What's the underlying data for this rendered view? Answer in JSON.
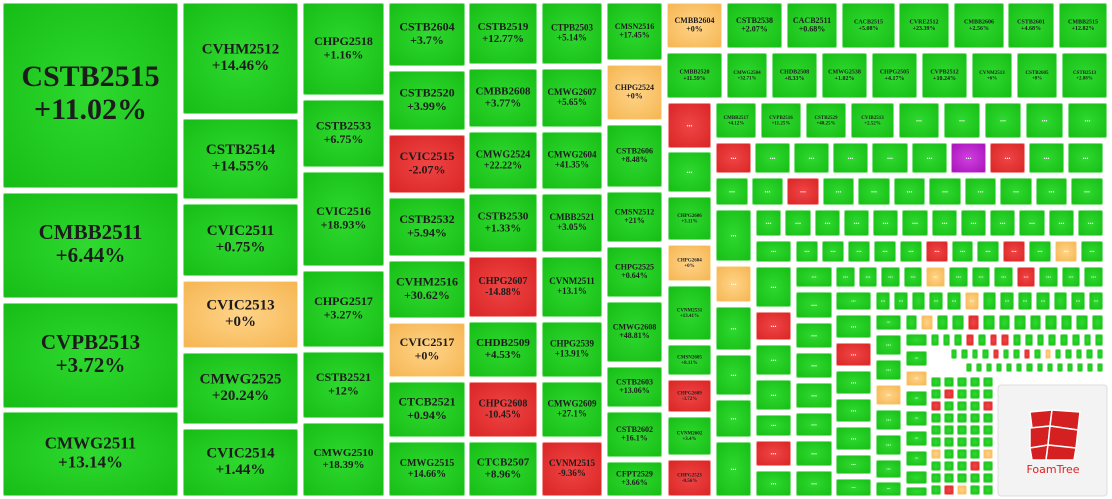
{
  "tiles": [
    {
      "name": "CSTB2515",
      "change": "+11.02%"
    },
    {
      "name": "CMBB2511",
      "change": "+6.44%"
    },
    {
      "name": "CVPB2513",
      "change": "+3.72%"
    },
    {
      "name": "CMWG2511",
      "change": "+13.14%"
    },
    {
      "name": "CVHM2512",
      "change": "+14.46%"
    },
    {
      "name": "CSTB2514",
      "change": "+14.55%"
    },
    {
      "name": "CVIC2511",
      "change": "+0.75%"
    },
    {
      "name": "CVIC2513",
      "change": "+0%"
    },
    {
      "name": "CMWG2525",
      "change": "+20.24%"
    },
    {
      "name": "CVIC2514",
      "change": "+1.44%"
    },
    {
      "name": "CHPG2518",
      "change": "+1.16%"
    },
    {
      "name": "CSTB2533",
      "change": "+6.75%"
    },
    {
      "name": "CVIC2516",
      "change": "+18.93%"
    },
    {
      "name": "CHPG2517",
      "change": "+3.27%"
    },
    {
      "name": "CSTB2521",
      "change": "+12%"
    },
    {
      "name": "CMWG2510",
      "change": "+18.39%"
    },
    {
      "name": "CSTB2604",
      "change": "+3.7%"
    },
    {
      "name": "CSTB2520",
      "change": "+3.99%"
    },
    {
      "name": "CVIC2515",
      "change": "-2.07%"
    },
    {
      "name": "CSTB2532",
      "change": "+5.94%"
    },
    {
      "name": "CVHM2516",
      "change": "+30.62%"
    },
    {
      "name": "CVIC2517",
      "change": "+0%"
    },
    {
      "name": "CTCB2521",
      "change": "+0.94%"
    },
    {
      "name": "CMWG2515",
      "change": "+14.66%"
    },
    {
      "name": "CSTB2519",
      "change": "+12.77%"
    },
    {
      "name": "CMBB2608",
      "change": "+3.77%"
    },
    {
      "name": "CMWG2524",
      "change": "+22.22%"
    },
    {
      "name": "CSTB2530",
      "change": "+1.33%"
    },
    {
      "name": "CHPG2607",
      "change": "-14.88%"
    },
    {
      "name": "CHDB2509",
      "change": "+4.53%"
    },
    {
      "name": "CHPG2608",
      "change": "-10.45%"
    },
    {
      "name": "CTCB2507",
      "change": "+8.96%"
    },
    {
      "name": "CTPB2503",
      "change": "+5.14%"
    },
    {
      "name": "CMWG2607",
      "change": "+5.65%"
    },
    {
      "name": "CMWG2604",
      "change": "+41.35%"
    },
    {
      "name": "CMBB2521",
      "change": "+3.05%"
    },
    {
      "name": "CVNM2511",
      "change": "+13.1%"
    },
    {
      "name": "CHPG2539",
      "change": "+13.91%"
    },
    {
      "name": "CMWG2609",
      "change": "+27.1%"
    },
    {
      "name": "CVNM2515",
      "change": "-9.36%"
    },
    {
      "name": "CMSN2516",
      "change": "+17.45%"
    },
    {
      "name": "CHPG2524",
      "change": "+0%"
    },
    {
      "name": "CSTB2606",
      "change": "+8.48%"
    },
    {
      "name": "CMSN2512",
      "change": "+21%"
    },
    {
      "name": "CHPG2525",
      "change": "+0.64%"
    },
    {
      "name": "CMWG2608",
      "change": "+48.81%"
    },
    {
      "name": "CSTB2603",
      "change": "+13.06%"
    },
    {
      "name": "CSTB2602",
      "change": "+16.1%"
    },
    {
      "name": "CFPT2529",
      "change": "+3.66%"
    },
    {
      "name": "CMBB2604",
      "change": "+0%"
    },
    {
      "name": "CSTB2538",
      "change": "+2.07%"
    },
    {
      "name": "CACB2511",
      "change": "+0.68%"
    },
    {
      "name": "CACB2515",
      "change": "+5.08%"
    },
    {
      "name": "CVRE2512",
      "change": "+23.39%"
    },
    {
      "name": "CMBB2606",
      "change": "+2.56%"
    },
    {
      "name": "CSTB2601",
      "change": "+4.68%"
    },
    {
      "name": "CMBB2515",
      "change": "+12.82%"
    },
    {
      "name": "CMBB2520",
      "change": "+11.59%"
    },
    {
      "name": "CMWG2504",
      "change": "+32.71%"
    },
    {
      "name": "CHDB2508",
      "change": "+8.33%"
    },
    {
      "name": "CMWG2538",
      "change": "+1.02%"
    },
    {
      "name": "CHPG2505",
      "change": "+4.17%"
    },
    {
      "name": "CVPB2512",
      "change": "+10.24%"
    },
    {
      "name": "CVNM2513",
      "change": "+6%"
    },
    {
      "name": "CSTB2605",
      "change": "+8%"
    },
    {
      "name": "CSTB2513",
      "change": "+2.88%"
    },
    {
      "name": "CMBB2517",
      "change": "+4.12%"
    },
    {
      "name": "CVPB2516",
      "change": "+11.25%"
    },
    {
      "name": "CSTB2529",
      "change": "+40.25%"
    },
    {
      "name": "CVIB2513",
      "change": "+2.52%"
    },
    {
      "name": "CHPG2606",
      "change": "+3.11%"
    },
    {
      "name": "CHPG2604",
      "change": "+0%"
    },
    {
      "name": "CVNM2531",
      "change": "+13.41%"
    },
    {
      "name": "CMSN2605",
      "change": "+8.11%"
    },
    {
      "name": "CHPG2609",
      "change": "-3.72%"
    },
    {
      "name": "CVNM2602",
      "change": "+3.4%"
    },
    {
      "name": "CHPG2523",
      "change": "-0.56%"
    }
  ],
  "placeholder": "...",
  "logo": "FoamTree"
}
